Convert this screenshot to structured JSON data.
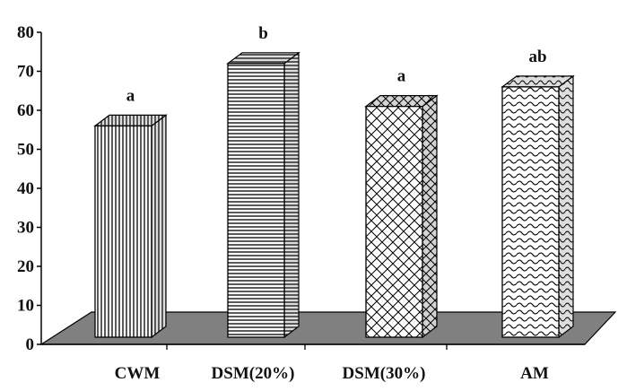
{
  "chart_data": {
    "type": "bar",
    "categories": [
      "CWM",
      "DSM(20%)",
      "DSM(30%)",
      "AM"
    ],
    "values": [
      56,
      72,
      61,
      66
    ],
    "significance_letters": [
      "a",
      "b",
      "a",
      "ab"
    ],
    "bar_patterns": [
      "vertical-lines",
      "horizontal-lines",
      "crosshatch",
      "wave"
    ],
    "y_ticks": [
      "0",
      "10",
      "20",
      "30",
      "40",
      "50",
      "60",
      "70",
      "80"
    ],
    "ylim": [
      0,
      80
    ],
    "title": "",
    "xlabel": "",
    "ylabel": "",
    "style": "3d-column",
    "floor_color": "#808080",
    "bar_color": "#ffffff",
    "side_color": "#bdbdbd",
    "edge_color": "#000000"
  }
}
